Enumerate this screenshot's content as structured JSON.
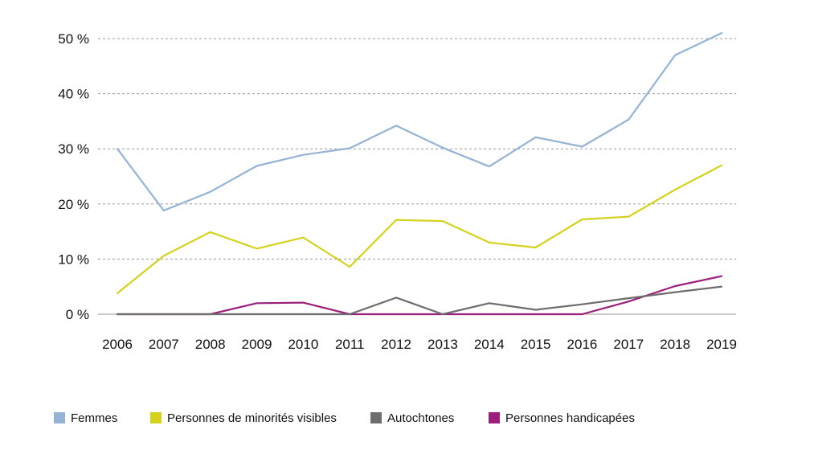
{
  "chart_data": {
    "type": "line",
    "title": "",
    "xlabel": "",
    "ylabel": "",
    "categories": [
      "2006",
      "2007",
      "2008",
      "2009",
      "2010",
      "2011",
      "2012",
      "2013",
      "2014",
      "2015",
      "2016",
      "2017",
      "2018",
      "2019"
    ],
    "ylim": [
      0,
      50
    ],
    "yticks": [
      0,
      10,
      20,
      30,
      40,
      50
    ],
    "ytick_labels": [
      "0 %",
      "10 %",
      "20 %",
      "30 %",
      "40 %",
      "50 %"
    ],
    "grid": true,
    "legend_position": "bottom",
    "series": [
      {
        "name": "Femmes",
        "color": "#94b3d5",
        "values": [
          30.0,
          18.8,
          22.2,
          26.9,
          28.9,
          30.1,
          34.2,
          30.2,
          26.8,
          32.1,
          30.4,
          35.3,
          47.0,
          51.0
        ]
      },
      {
        "name": "Personnes de minorités visibles",
        "color": "#d4d21b",
        "values": [
          3.8,
          10.6,
          14.9,
          11.9,
          13.9,
          8.6,
          17.1,
          16.9,
          13.0,
          12.1,
          17.2,
          17.7,
          22.6,
          27.0
        ]
      },
      {
        "name": "Autochtones",
        "color": "#6d6d6d",
        "values": [
          0,
          0,
          0,
          0,
          0,
          0,
          3.0,
          0,
          2.0,
          0.8,
          1.8,
          2.9,
          4.0,
          5.0
        ]
      },
      {
        "name": "Personnes handicapées",
        "color": "#9b1f7b",
        "values": [
          0,
          0,
          0,
          2.0,
          2.1,
          0,
          0,
          0,
          0,
          0,
          0,
          2.3,
          5.1,
          6.9
        ]
      }
    ]
  }
}
